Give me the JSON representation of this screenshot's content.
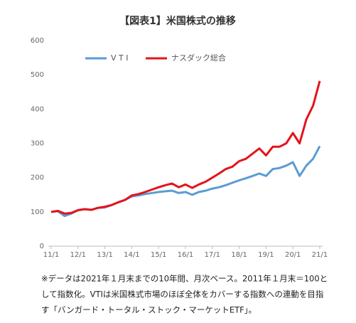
{
  "chart_data": {
    "type": "line",
    "title": "【図表1】米国株式の推移",
    "categories": [
      "11/1",
      null,
      null,
      null,
      "12/1",
      null,
      null,
      null,
      "13/1",
      null,
      null,
      null,
      "14/1",
      null,
      null,
      null,
      "15/1",
      null,
      null,
      null,
      "16/1",
      null,
      null,
      null,
      "17/1",
      null,
      null,
      null,
      "18/1",
      null,
      null,
      null,
      "19/1",
      null,
      null,
      null,
      "20/1",
      null,
      null,
      null,
      "21/1"
    ],
    "series": [
      {
        "name": "V T I",
        "color": "#5b9bd5",
        "values": [
          100,
          102,
          88,
          95,
          105,
          108,
          106,
          112,
          113,
          120,
          128,
          135,
          145,
          148,
          152,
          155,
          158,
          160,
          162,
          155,
          158,
          150,
          158,
          162,
          168,
          172,
          178,
          185,
          192,
          198,
          205,
          212,
          205,
          225,
          228,
          235,
          245,
          205,
          235,
          255,
          292
        ]
      },
      {
        "name": "ナスダック総合",
        "color": "#e3141b",
        "values": [
          100,
          103,
          95,
          97,
          105,
          108,
          106,
          112,
          115,
          120,
          128,
          135,
          148,
          152,
          158,
          165,
          172,
          178,
          183,
          172,
          180,
          170,
          180,
          188,
          200,
          212,
          225,
          232,
          248,
          255,
          270,
          285,
          265,
          290,
          290,
          300,
          330,
          300,
          370,
          410,
          482
        ]
      }
    ],
    "ylim": [
      0,
      600
    ],
    "yticks": [
      0,
      100,
      200,
      300,
      400,
      500,
      600
    ],
    "grid": false,
    "legend": "top",
    "note": [
      "※データは2021年１月末までの10年間、月次ベース。2011年１月末＝100と",
      "して指数化。VTIは米国株式市場のほぼ全体をカバーする指数への連動を目指",
      "す「バンガード・トータル・ストック・マーケットETF」。"
    ]
  }
}
